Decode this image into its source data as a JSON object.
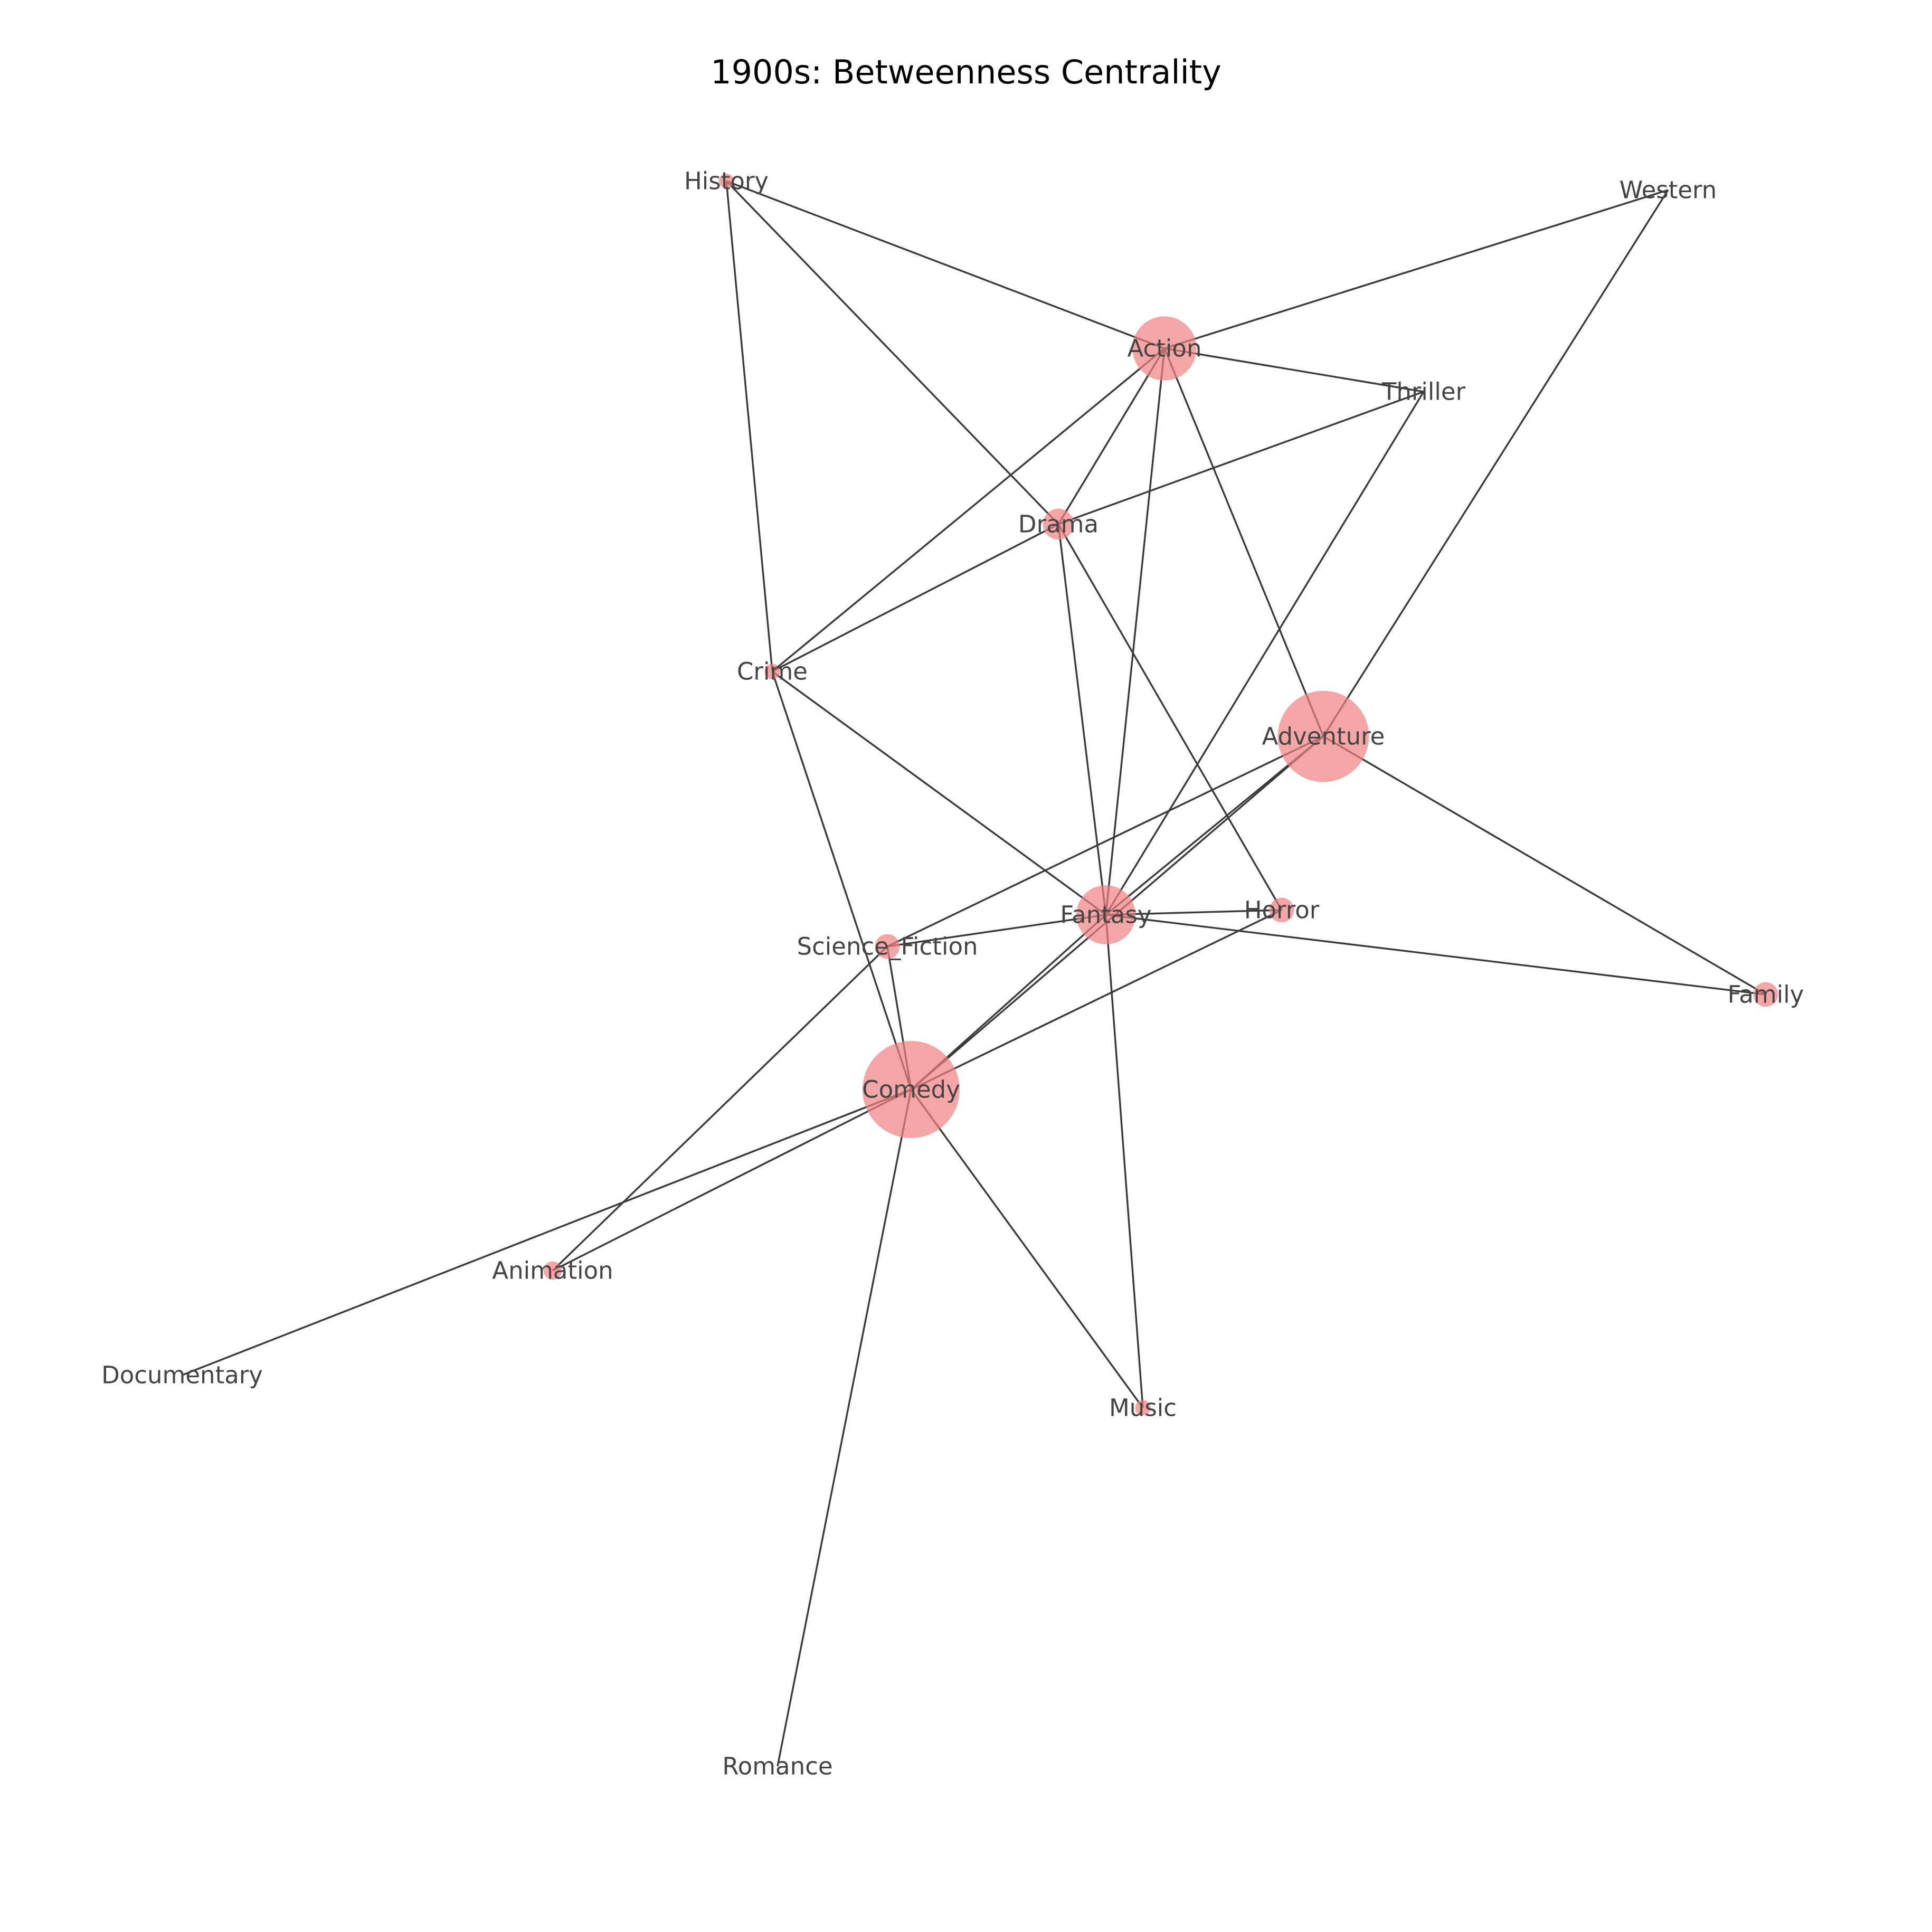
{
  "title": "1900s: Betweenness Centrality",
  "colors": {
    "node": "#f08080",
    "edge": "#3a3a3a",
    "label": "#444444"
  },
  "nodes": [
    {
      "id": "History",
      "label": "History",
      "centrality": 0.004
    },
    {
      "id": "Western",
      "label": "Western",
      "centrality": 0.0
    },
    {
      "id": "Action",
      "label": "Action",
      "centrality": 0.121
    },
    {
      "id": "Thriller",
      "label": "Thriller",
      "centrality": 0.0
    },
    {
      "id": "Drama",
      "label": "Drama",
      "centrality": 0.028
    },
    {
      "id": "Crime",
      "label": "Crime",
      "centrality": 0.007
    },
    {
      "id": "Adventure",
      "label": "Adventure",
      "centrality": 0.245
    },
    {
      "id": "Fantasy",
      "label": "Fantasy",
      "centrality": 0.103
    },
    {
      "id": "Horror",
      "label": "Horror",
      "centrality": 0.018
    },
    {
      "id": "Science_Fiction",
      "label": "Science_Fiction",
      "centrality": 0.018
    },
    {
      "id": "Family",
      "label": "Family",
      "centrality": 0.018
    },
    {
      "id": "Comedy",
      "label": "Comedy",
      "centrality": 0.278
    },
    {
      "id": "Animation",
      "label": "Animation",
      "centrality": 0.01
    },
    {
      "id": "Documentary",
      "label": "Documentary",
      "centrality": 0.0
    },
    {
      "id": "Music",
      "label": "Music",
      "centrality": 0.007
    },
    {
      "id": "Romance",
      "label": "Romance",
      "centrality": 0.0
    }
  ],
  "edges": [
    [
      "History",
      "Action"
    ],
    [
      "History",
      "Drama"
    ],
    [
      "History",
      "Crime"
    ],
    [
      "Western",
      "Action"
    ],
    [
      "Western",
      "Adventure"
    ],
    [
      "Action",
      "Thriller"
    ],
    [
      "Action",
      "Drama"
    ],
    [
      "Action",
      "Crime"
    ],
    [
      "Action",
      "Fantasy"
    ],
    [
      "Action",
      "Adventure"
    ],
    [
      "Thriller",
      "Drama"
    ],
    [
      "Thriller",
      "Fantasy"
    ],
    [
      "Drama",
      "Crime"
    ],
    [
      "Drama",
      "Fantasy"
    ],
    [
      "Drama",
      "Horror"
    ],
    [
      "Crime",
      "Fantasy"
    ],
    [
      "Crime",
      "Comedy"
    ],
    [
      "Adventure",
      "Fantasy"
    ],
    [
      "Adventure",
      "Comedy"
    ],
    [
      "Adventure",
      "Science_Fiction"
    ],
    [
      "Adventure",
      "Family"
    ],
    [
      "Fantasy",
      "Horror"
    ],
    [
      "Fantasy",
      "Science_Fiction"
    ],
    [
      "Fantasy",
      "Family"
    ],
    [
      "Fantasy",
      "Comedy"
    ],
    [
      "Fantasy",
      "Music"
    ],
    [
      "Horror",
      "Comedy"
    ],
    [
      "Science_Fiction",
      "Comedy"
    ],
    [
      "Science_Fiction",
      "Animation"
    ],
    [
      "Comedy",
      "Animation"
    ],
    [
      "Comedy",
      "Documentary"
    ],
    [
      "Comedy",
      "Music"
    ],
    [
      "Comedy",
      "Romance"
    ]
  ]
}
